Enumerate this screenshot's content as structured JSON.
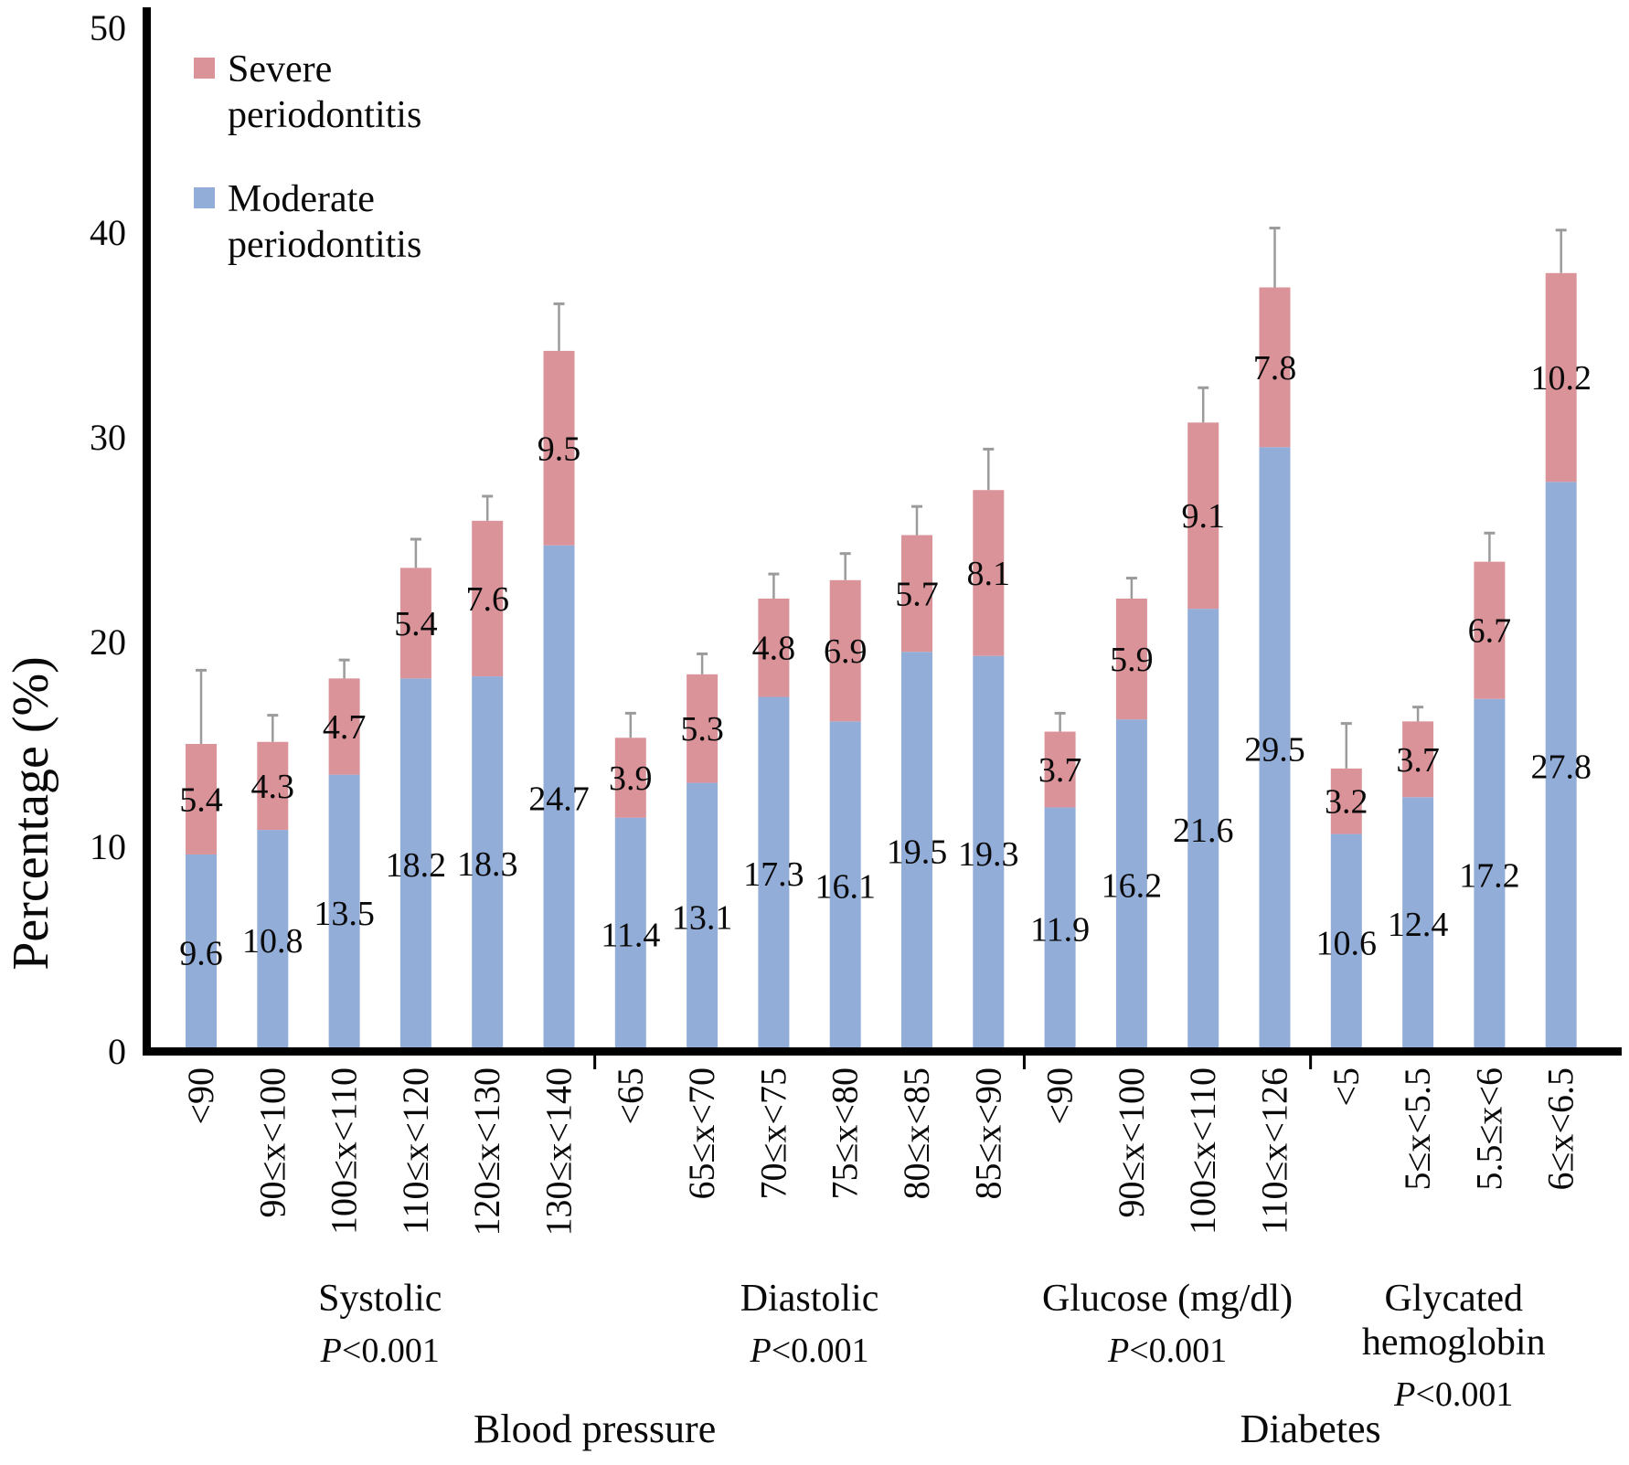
{
  "chart_data": {
    "type": "bar",
    "stacked": true,
    "title": "",
    "ylabel": "Percentage (%)",
    "xlabel": "",
    "ylim": [
      0,
      50
    ],
    "y_ticks": [
      0,
      10,
      20,
      30,
      40,
      50
    ],
    "grid": false,
    "legend_position": "top-left-inside",
    "error_bars": "upper-only",
    "colors": {
      "moderate": "#93add9",
      "severe": "#db939a",
      "error_bar": "#9b9b9b",
      "axis": "#000000",
      "text": "#0a0a0a"
    },
    "legend": {
      "severe": {
        "name": "Severe periodontitis",
        "line1": "Severe",
        "line2": "periodontitis"
      },
      "moderate": {
        "name": "Moderate periodontitis",
        "line1": "Moderate",
        "line2": "periodontitis"
      }
    },
    "series_order_bottom_to_top": [
      "Moderate periodontitis",
      "Severe periodontitis"
    ],
    "groups": [
      {
        "label": "Systolic",
        "label_lines": [
          "Systolic"
        ],
        "p_value": "P<0.001",
        "super_group": "Blood pressure",
        "bars": [
          {
            "category": "<90",
            "moderate": 9.6,
            "severe": 5.4,
            "error_up": 3.6
          },
          {
            "category": "90≤x<100",
            "moderate": 10.8,
            "severe": 4.3,
            "error_up": 1.3
          },
          {
            "category": "100≤x<110",
            "moderate": 13.5,
            "severe": 4.7,
            "error_up": 0.9
          },
          {
            "category": "110≤x<120",
            "moderate": 18.2,
            "severe": 5.4,
            "error_up": 1.4
          },
          {
            "category": "120≤x<130",
            "moderate": 18.3,
            "severe": 7.6,
            "error_up": 1.2
          },
          {
            "category": "130≤x<140",
            "moderate": 24.7,
            "severe": 9.5,
            "error_up": 2.3
          }
        ]
      },
      {
        "label": "Diastolic",
        "label_lines": [
          "Diastolic"
        ],
        "p_value": "P<0.001",
        "super_group": "Blood pressure",
        "bars": [
          {
            "category": "<65",
            "moderate": 11.4,
            "severe": 3.9,
            "error_up": 1.2
          },
          {
            "category": "65≤x<70",
            "moderate": 13.1,
            "severe": 5.3,
            "error_up": 1.0
          },
          {
            "category": "70≤x<75",
            "moderate": 17.3,
            "severe": 4.8,
            "error_up": 1.2
          },
          {
            "category": "75≤x<80",
            "moderate": 16.1,
            "severe": 6.9,
            "error_up": 1.3
          },
          {
            "category": "80≤x<85",
            "moderate": 19.5,
            "severe": 5.7,
            "error_up": 1.4
          },
          {
            "category": "85≤x<90",
            "moderate": 19.3,
            "severe": 8.1,
            "error_up": 2.0
          }
        ]
      },
      {
        "label": "Glucose (mg/dl)",
        "label_lines": [
          "Glucose (mg/dl)"
        ],
        "p_value": "P<0.001",
        "super_group": "Diabetes",
        "bars": [
          {
            "category": "<90",
            "moderate": 11.9,
            "severe": 3.7,
            "error_up": 0.9
          },
          {
            "category": "90≤x<100",
            "moderate": 16.2,
            "severe": 5.9,
            "error_up": 1.0
          },
          {
            "category": "100≤x<110",
            "moderate": 21.6,
            "severe": 9.1,
            "error_up": 1.7
          },
          {
            "category": "110≤x<126",
            "moderate": 29.5,
            "severe": 7.8,
            "error_up": 2.9
          }
        ]
      },
      {
        "label": "Glycated hemoglobin",
        "label_lines": [
          "Glycated",
          "hemoglobin"
        ],
        "p_value": "P<0.001",
        "super_group": "Diabetes",
        "bars": [
          {
            "category": "<5",
            "moderate": 10.6,
            "severe": 3.2,
            "error_up": 2.2
          },
          {
            "category": "5≤x<5.5",
            "moderate": 12.4,
            "severe": 3.7,
            "error_up": 0.7
          },
          {
            "category": "5.5≤x<6",
            "moderate": 17.2,
            "severe": 6.7,
            "error_up": 1.4
          },
          {
            "category": "6≤x<6.5",
            "moderate": 27.8,
            "severe": 10.2,
            "error_up": 2.1
          }
        ]
      }
    ],
    "super_groups": [
      {
        "label": "Blood pressure"
      },
      {
        "label": "Diabetes"
      }
    ]
  }
}
